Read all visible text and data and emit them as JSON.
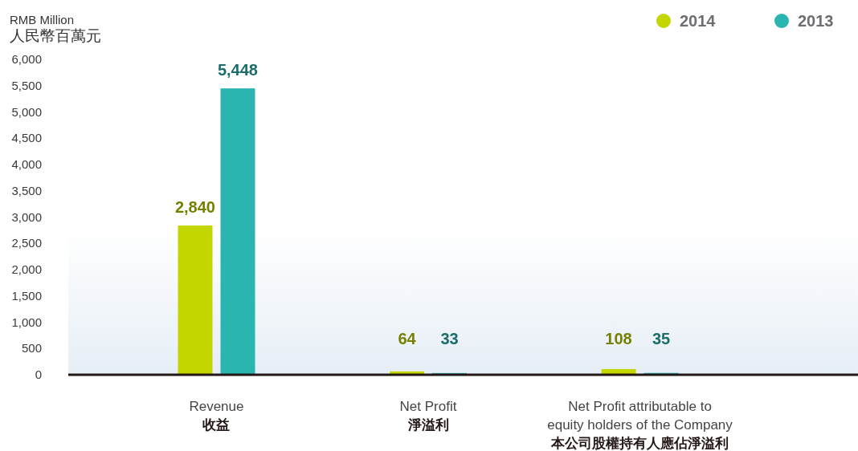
{
  "chart_data": {
    "type": "bar",
    "ylabel": "RMB Million\n人民幣百萬元",
    "categories": [
      "Revenue\n收益",
      "Net Profit\n淨溢利",
      "Net Profit attributable to\nequity holders of the Company\n本公司股權持有人應佔淨溢利"
    ],
    "series": [
      {
        "name": "2014",
        "color": "#c4d600",
        "values": [
          2840,
          64,
          108
        ],
        "value_labels": [
          "2,840",
          "64",
          "108"
        ]
      },
      {
        "name": "2013",
        "color": "#2bb5b0",
        "values": [
          5448,
          33,
          35
        ],
        "value_labels": [
          "5,448",
          "33",
          "35"
        ]
      }
    ],
    "ylim": [
      0,
      6000
    ],
    "yticks": [
      {
        "value": 0,
        "label": "0"
      },
      {
        "value": 500,
        "label": "500"
      },
      {
        "value": 1000,
        "label": "1,000"
      },
      {
        "value": 1500,
        "label": "1,500"
      },
      {
        "value": 2000,
        "label": "2,000"
      },
      {
        "value": 2500,
        "label": "2,500"
      },
      {
        "value": 3000,
        "label": "3,000"
      },
      {
        "value": 3500,
        "label": "3,500"
      },
      {
        "value": 4000,
        "label": "4,000"
      },
      {
        "value": 4500,
        "label": "4,500"
      },
      {
        "value": 5000,
        "label": "5,000"
      },
      {
        "value": 5500,
        "label": "5,500"
      },
      {
        "value": 6000,
        "label": "6,000"
      }
    ],
    "grid": false,
    "legend": "top right"
  }
}
